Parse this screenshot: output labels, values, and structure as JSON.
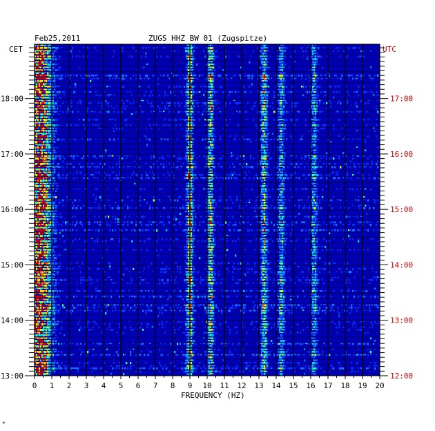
{
  "chart_data": {
    "type": "heatmap",
    "header_left": "Feb25,2011",
    "title": "ZUGS HHZ BW 01 (Zugspitze)",
    "left_axis_label": "CET",
    "right_axis_label": "UTC",
    "xlabel": "FREQUENCY (HZ)",
    "xlim": [
      0,
      20
    ],
    "x_ticks": [
      "0",
      "1",
      "2",
      "3",
      "4",
      "5",
      "6",
      "7",
      "8",
      "9",
      "10",
      "11",
      "12",
      "13",
      "14",
      "15",
      "16",
      "17",
      "18",
      "19",
      "20"
    ],
    "time_range_cet_hours": [
      13,
      18.98
    ],
    "left_ticks": [
      {
        "hour": 13,
        "label": "13:00"
      },
      {
        "hour": 14,
        "label": "14:00"
      },
      {
        "hour": 15,
        "label": "15:00"
      },
      {
        "hour": 16,
        "label": "16:00"
      },
      {
        "hour": 17,
        "label": "17:00"
      },
      {
        "hour": 18,
        "label": "18:00"
      }
    ],
    "right_ticks": [
      {
        "hour": 13,
        "label": "12:00"
      },
      {
        "hour": 14,
        "label": "13:00"
      },
      {
        "hour": 15,
        "label": "14:00"
      },
      {
        "hour": 16,
        "label": "15:00"
      },
      {
        "hour": 17,
        "label": "16:00"
      },
      {
        "hour": 18,
        "label": "17:00"
      }
    ],
    "colormap": [
      "#00007a",
      "#0000c8",
      "#0a2cff",
      "#1e6bff",
      "#00d0ff",
      "#3cff9a",
      "#c8ff28",
      "#ffd200",
      "#ff6a00",
      "#d00000"
    ],
    "background_color": "#0000b4",
    "spectral_features": [
      {
        "freq_hz": 0.3,
        "intensity": 0.85,
        "note": "low-frequency noise band"
      },
      {
        "freq_hz": 9.0,
        "intensity": 0.6
      },
      {
        "freq_hz": 10.2,
        "intensity": 0.5
      },
      {
        "freq_hz": 13.3,
        "intensity": 0.45
      },
      {
        "freq_hz": 14.3,
        "intensity": 0.35
      },
      {
        "freq_hz": 16.2,
        "intensity": 0.3
      }
    ],
    "grid": true
  },
  "footer_mark": "*"
}
